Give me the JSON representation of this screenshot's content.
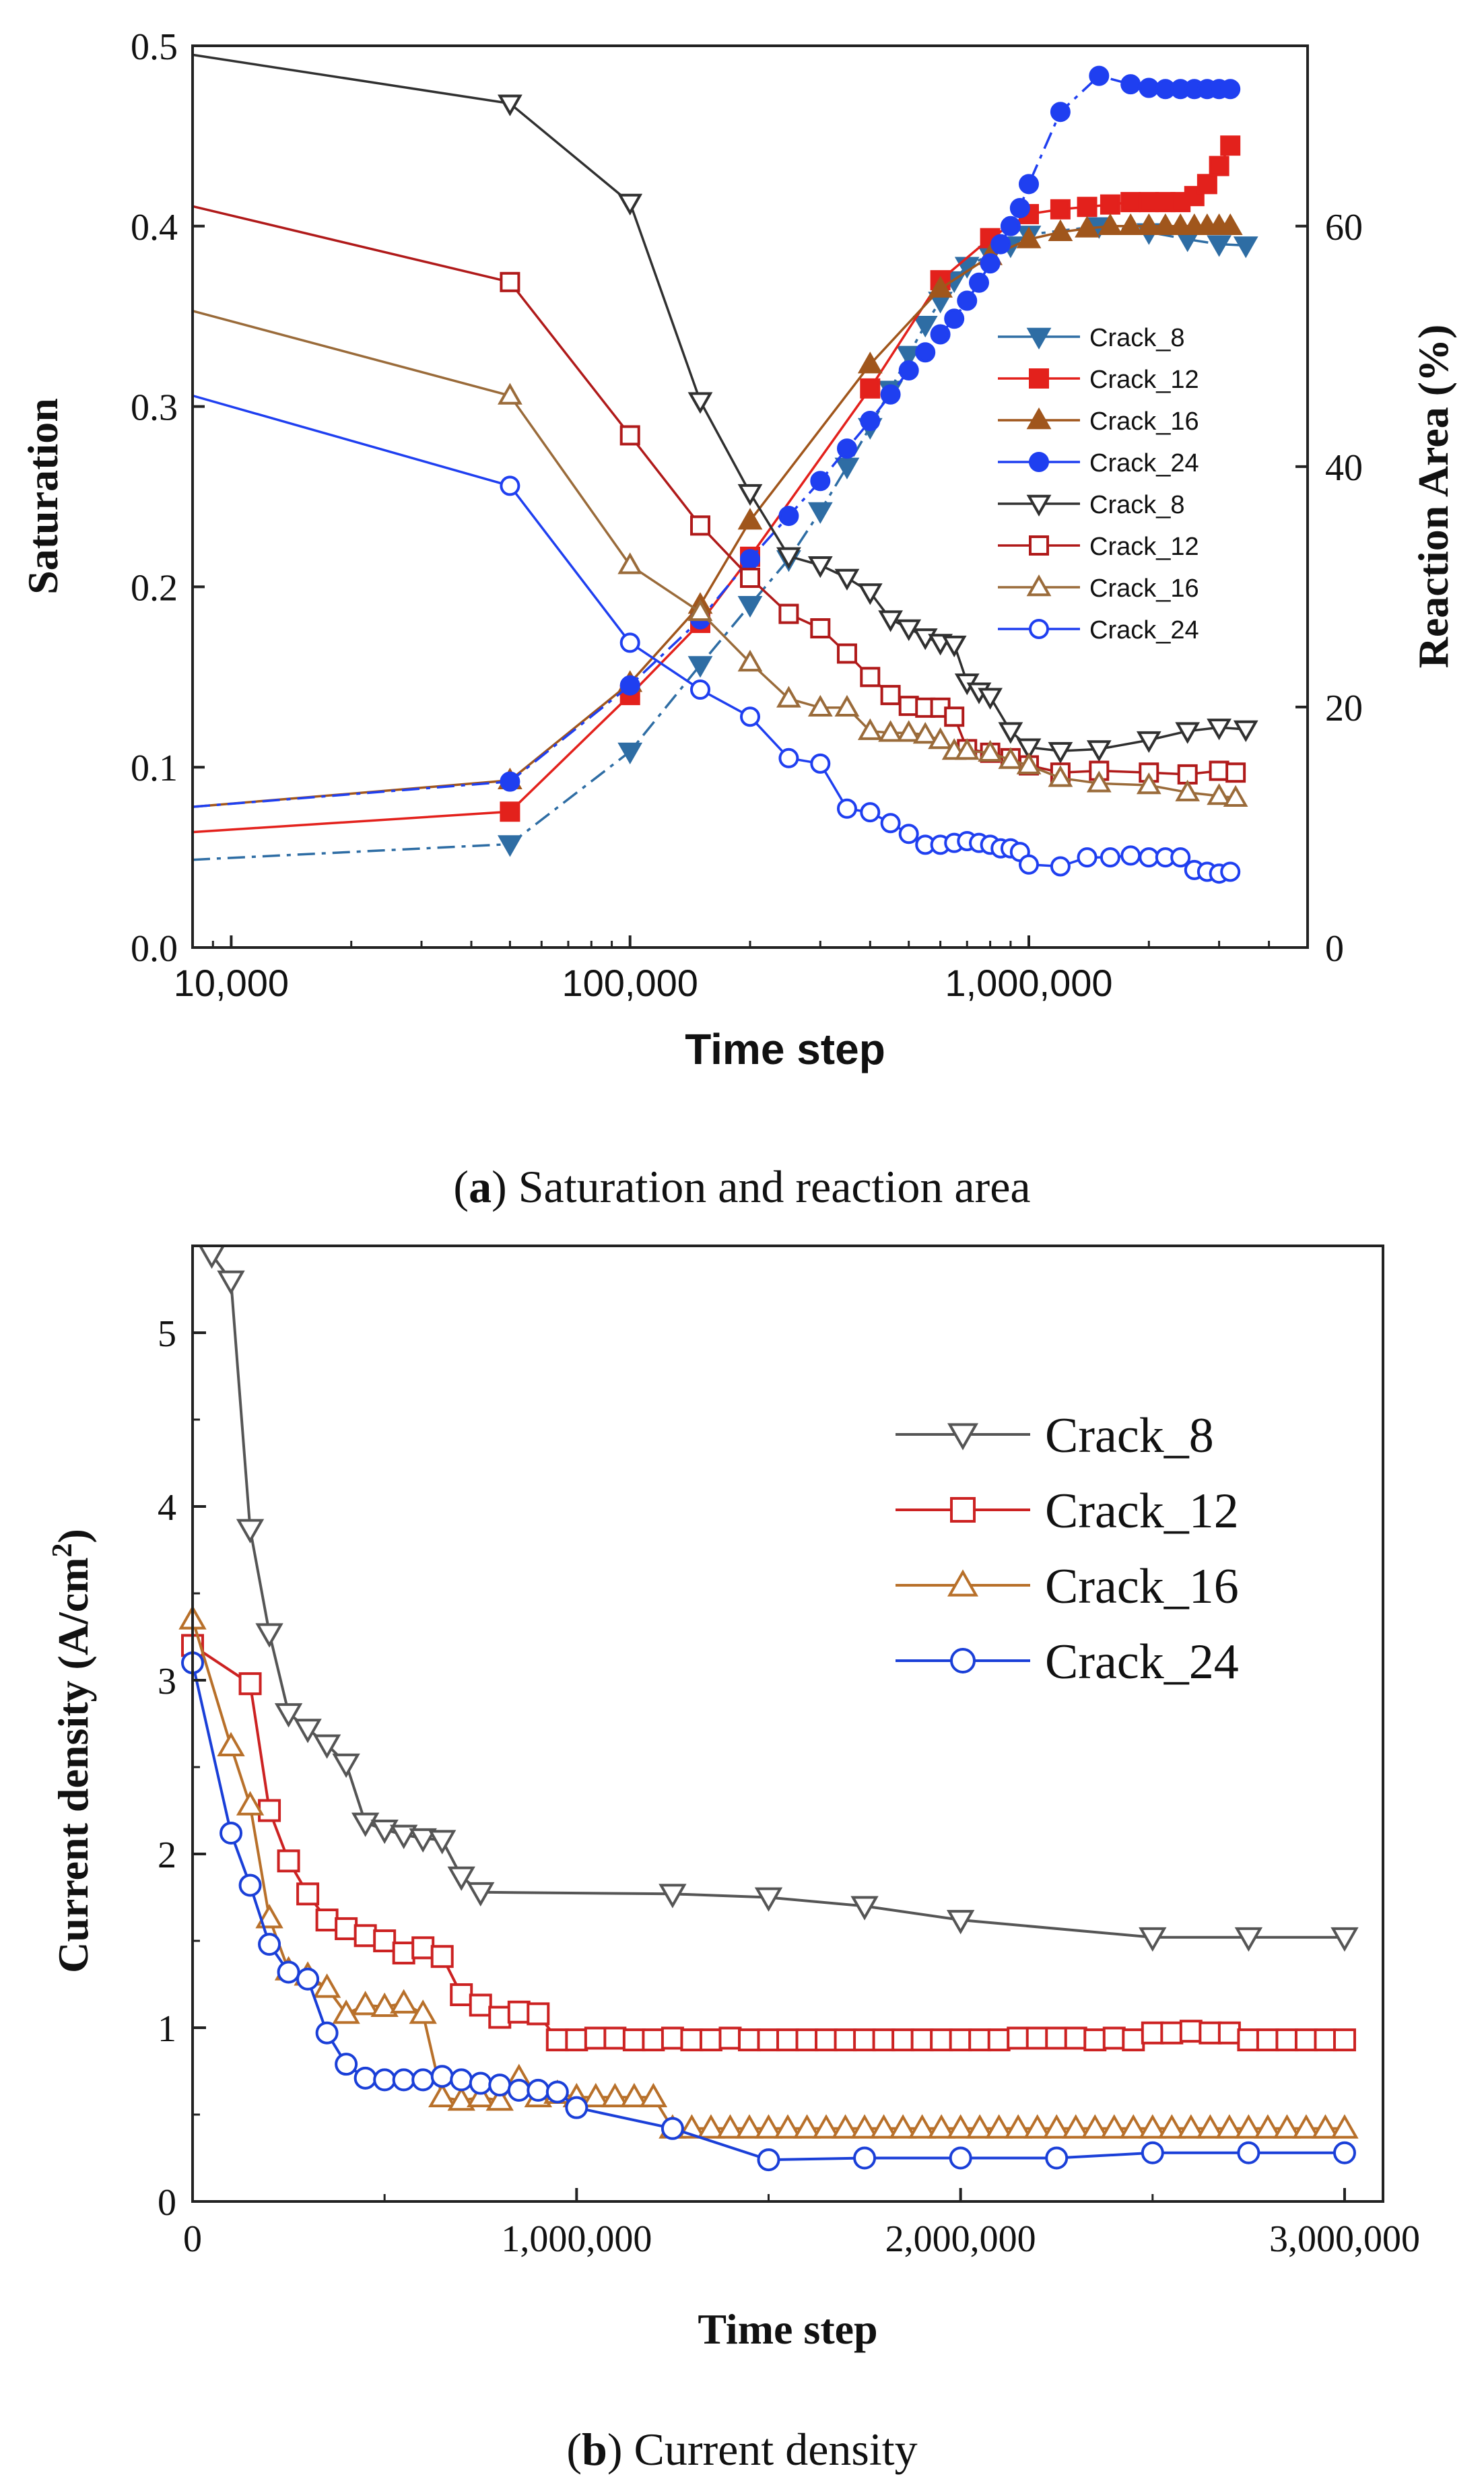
{
  "chart_data": [
    {
      "id": "a",
      "type": "line",
      "xscale": "log",
      "xlim": [
        8000,
        5000000
      ],
      "ylim": [
        0,
        0.5
      ],
      "y2lim": [
        0,
        75
      ],
      "xlabel": "Time step",
      "ylabel": "Saturation",
      "y2label": "Reaction Area (%)",
      "xticks": [
        {
          "v": 10000,
          "label": "10,000"
        },
        {
          "v": 100000,
          "label": "100,000"
        },
        {
          "v": 1000000,
          "label": "1,000,000"
        }
      ],
      "yticks": [
        {
          "v": 0,
          "label": "0.0"
        },
        {
          "v": 0.1,
          "label": "0.1"
        },
        {
          "v": 0.2,
          "label": "0.2"
        },
        {
          "v": 0.3,
          "label": "0.3"
        },
        {
          "v": 0.4,
          "label": "0.4"
        },
        {
          "v": 0.5,
          "label": "0.5"
        }
      ],
      "y2ticks": [
        {
          "v": 0,
          "label": "0"
        },
        {
          "v": 20,
          "label": "20"
        },
        {
          "v": 40,
          "label": "40"
        },
        {
          "v": 60,
          "label": "60"
        }
      ],
      "caption_bold": "a",
      "caption_text": "Saturation and reaction area",
      "series": [
        {
          "name": "Crack_8",
          "axis": "y2",
          "marker": "tri-down",
          "filled": true,
          "color": "#2e6da4",
          "dash": true,
          "x": [
            8000,
            50000,
            100000,
            150000,
            200000,
            250000,
            300000,
            350000,
            400000,
            450000,
            500000,
            550000,
            600000,
            650000,
            700000,
            800000,
            900000,
            1000000,
            1500000,
            2000000,
            2500000,
            3000000,
            3500000
          ],
          "y": [
            7.3,
            8.6,
            16.3,
            23.5,
            28.5,
            32.3,
            36.3,
            40.0,
            43.3,
            46.4,
            49.3,
            51.8,
            53.8,
            55.5,
            56.7,
            57.6,
            58.4,
            59.3,
            60.0,
            59.5,
            58.9,
            58.5,
            58.4
          ]
        },
        {
          "name": "Crack_12",
          "axis": "y2",
          "marker": "square",
          "filled": true,
          "color": "#e3211c",
          "dash": false,
          "x": [
            8000,
            50000,
            100000,
            150000,
            200000,
            400000,
            600000,
            800000,
            1000000,
            1200000,
            1400000,
            1600000,
            1800000,
            2000000,
            2200000,
            2400000,
            2600000,
            2800000,
            3000000,
            3200000
          ],
          "y": [
            9.6,
            11.3,
            21.0,
            27.0,
            32.5,
            46.5,
            55.5,
            59.0,
            61.0,
            61.4,
            61.6,
            61.8,
            62.0,
            62.0,
            62.0,
            62.0,
            62.5,
            63.5,
            65.0,
            66.7
          ]
        },
        {
          "name": "Crack_16",
          "axis": "y2",
          "marker": "tri-up",
          "filled": true,
          "color": "#a0561c",
          "dash": false,
          "x": [
            8000,
            50000,
            100000,
            150000,
            200000,
            400000,
            600000,
            800000,
            1000000,
            1200000,
            1400000,
            1600000,
            1800000,
            2000000,
            2200000,
            2400000,
            2600000,
            2800000,
            3000000,
            3200000
          ],
          "y": [
            11.7,
            13.9,
            22.0,
            28.5,
            35.5,
            48.5,
            54.8,
            57.5,
            58.9,
            59.5,
            59.8,
            60.0,
            60.0,
            60.0,
            60.0,
            60.0,
            60.0,
            60.0,
            60.0,
            60.0
          ]
        },
        {
          "name": "Crack_24",
          "axis": "y2",
          "marker": "circle",
          "filled": true,
          "color": "#1f3ff0",
          "dash": true,
          "x": [
            8000,
            50000,
            100000,
            150000,
            200000,
            250000,
            300000,
            350000,
            400000,
            450000,
            500000,
            550000,
            600000,
            650000,
            700000,
            750000,
            800000,
            850000,
            900000,
            950000,
            1000000,
            1200000,
            1500000,
            1800000,
            2000000,
            2200000,
            2400000,
            2600000,
            2800000,
            3000000,
            3200000
          ],
          "y": [
            11.7,
            13.8,
            21.8,
            27.3,
            32.3,
            35.9,
            38.8,
            41.5,
            43.8,
            46.0,
            48.0,
            49.5,
            51.0,
            52.3,
            53.8,
            55.3,
            56.9,
            58.5,
            60.0,
            61.5,
            63.5,
            69.5,
            72.5,
            71.8,
            71.5,
            71.4,
            71.4,
            71.4,
            71.4,
            71.4,
            71.4
          ]
        },
        {
          "name": "Crack_8",
          "axis": "y",
          "marker": "tri-down",
          "filled": false,
          "color": "#303030",
          "dash": false,
          "x": [
            8000,
            50000,
            100000,
            150000,
            200000,
            250000,
            300000,
            350000,
            400000,
            450000,
            500000,
            550000,
            600000,
            650000,
            700000,
            750000,
            800000,
            900000,
            1000000,
            1200000,
            1500000,
            2000000,
            2500000,
            3000000,
            3500000
          ],
          "y": [
            0.495,
            0.468,
            0.413,
            0.303,
            0.252,
            0.217,
            0.212,
            0.205,
            0.197,
            0.182,
            0.177,
            0.172,
            0.169,
            0.168,
            0.147,
            0.142,
            0.139,
            0.12,
            0.111,
            0.109,
            0.11,
            0.115,
            0.12,
            0.122,
            0.121
          ]
        },
        {
          "name": "Crack_12",
          "axis": "y",
          "marker": "square",
          "filled": false,
          "color": "#b01a1a",
          "dash": false,
          "x": [
            8000,
            50000,
            100000,
            150000,
            200000,
            250000,
            300000,
            350000,
            400000,
            450000,
            500000,
            550000,
            600000,
            650000,
            700000,
            800000,
            900000,
            1000000,
            1200000,
            1500000,
            2000000,
            2500000,
            3000000,
            3300000
          ],
          "y": [
            0.411,
            0.369,
            0.284,
            0.234,
            0.205,
            0.185,
            0.177,
            0.163,
            0.15,
            0.14,
            0.134,
            0.133,
            0.133,
            0.128,
            0.11,
            0.108,
            0.105,
            0.101,
            0.097,
            0.098,
            0.097,
            0.096,
            0.098,
            0.097
          ]
        },
        {
          "name": "Crack_16",
          "axis": "y",
          "marker": "tri-up",
          "filled": false,
          "color": "#9a6b3a",
          "dash": false,
          "x": [
            8000,
            50000,
            100000,
            150000,
            200000,
            250000,
            300000,
            350000,
            400000,
            450000,
            500000,
            550000,
            600000,
            650000,
            700000,
            800000,
            900000,
            1000000,
            1200000,
            1500000,
            2000000,
            2500000,
            3000000,
            3300000
          ],
          "y": [
            0.353,
            0.306,
            0.212,
            0.186,
            0.158,
            0.138,
            0.133,
            0.133,
            0.12,
            0.119,
            0.119,
            0.118,
            0.115,
            0.109,
            0.109,
            0.108,
            0.104,
            0.101,
            0.094,
            0.091,
            0.09,
            0.086,
            0.084,
            0.083
          ]
        },
        {
          "name": "Crack_24",
          "axis": "y",
          "marker": "circle",
          "filled": false,
          "color": "#1f3ff0",
          "dash": false,
          "x": [
            8000,
            50000,
            100000,
            150000,
            200000,
            250000,
            300000,
            350000,
            400000,
            450000,
            500000,
            550000,
            600000,
            650000,
            700000,
            750000,
            800000,
            850000,
            900000,
            950000,
            1000000,
            1200000,
            1400000,
            1600000,
            1800000,
            2000000,
            2200000,
            2400000,
            2600000,
            2800000,
            3000000,
            3200000
          ],
          "y": [
            0.306,
            0.256,
            0.169,
            0.143,
            0.128,
            0.105,
            0.102,
            0.077,
            0.075,
            0.069,
            0.063,
            0.057,
            0.057,
            0.058,
            0.059,
            0.058,
            0.057,
            0.055,
            0.055,
            0.053,
            0.046,
            0.045,
            0.05,
            0.05,
            0.051,
            0.05,
            0.05,
            0.05,
            0.043,
            0.042,
            0.041,
            0.042
          ]
        }
      ]
    },
    {
      "id": "b",
      "type": "line",
      "xscale": "linear",
      "xlim": [
        0,
        3100000
      ],
      "ylim": [
        0,
        5.5
      ],
      "xlabel": "Time step",
      "ylabel": "Current density (A/cm²)",
      "ylabel_main": "Current density (A/cm",
      "ylabel_sup": "2",
      "ylabel_end": ")",
      "xticks": [
        {
          "v": 0,
          "label": "0"
        },
        {
          "v": 1000000,
          "label": "1,000,000"
        },
        {
          "v": 2000000,
          "label": "2,000,000"
        },
        {
          "v": 3000000,
          "label": "3,000,000"
        }
      ],
      "yticks": [
        {
          "v": 0,
          "label": "0"
        },
        {
          "v": 1,
          "label": "1"
        },
        {
          "v": 2,
          "label": "2"
        },
        {
          "v": 3,
          "label": "3"
        },
        {
          "v": 4,
          "label": "4"
        },
        {
          "v": 5,
          "label": "5"
        }
      ],
      "caption_bold": "b",
      "caption_text": "Current density",
      "series": [
        {
          "name": "Crack_8",
          "marker": "tri-down",
          "filled": false,
          "color": "#555555",
          "x": [
            50000,
            100000,
            150000,
            200000,
            250000,
            300000,
            350000,
            400000,
            450000,
            500000,
            550000,
            600000,
            650000,
            700000,
            750000,
            1250000,
            1500000,
            1750000,
            2000000,
            2500000,
            2750000,
            3000000
          ],
          "y": [
            5.45,
            5.3,
            3.87,
            3.27,
            2.81,
            2.72,
            2.63,
            2.52,
            2.18,
            2.14,
            2.11,
            2.09,
            2.08,
            1.87,
            1.78,
            1.77,
            1.75,
            1.7,
            1.62,
            1.52,
            1.52,
            1.52
          ]
        },
        {
          "name": "Crack_12",
          "marker": "square",
          "filled": false,
          "color": "#cc2222",
          "x": [
            0,
            150000,
            200000,
            250000,
            300000,
            350000,
            400000,
            450000,
            500000,
            550000,
            600000,
            650000,
            700000,
            750000,
            800000,
            850000,
            900000,
            950000,
            1000000,
            1050000,
            1100000,
            1150000,
            1200000,
            1250000,
            1300000,
            1350000,
            1400000,
            1450000,
            1500000,
            1550000,
            1600000,
            1650000,
            1700000,
            1750000,
            1800000,
            1850000,
            1900000,
            1950000,
            2000000,
            2050000,
            2100000,
            2150000,
            2200000,
            2250000,
            2300000,
            2350000,
            2400000,
            2450000,
            2500000,
            2550000,
            2600000,
            2650000,
            2700000,
            2750000,
            2800000,
            2850000,
            2900000,
            2950000,
            3000000
          ],
          "y": [
            3.2,
            2.98,
            2.25,
            1.96,
            1.77,
            1.62,
            1.57,
            1.53,
            1.5,
            1.43,
            1.46,
            1.41,
            1.19,
            1.13,
            1.06,
            1.09,
            1.08,
            0.93,
            0.93,
            0.94,
            0.94,
            0.93,
            0.93,
            0.94,
            0.93,
            0.93,
            0.94,
            0.93,
            0.93,
            0.93,
            0.93,
            0.93,
            0.93,
            0.93,
            0.93,
            0.93,
            0.93,
            0.93,
            0.93,
            0.93,
            0.93,
            0.94,
            0.94,
            0.94,
            0.94,
            0.93,
            0.94,
            0.93,
            0.97,
            0.97,
            0.98,
            0.97,
            0.97,
            0.93,
            0.93,
            0.93,
            0.93,
            0.93,
            0.93
          ]
        },
        {
          "name": "Crack_16",
          "marker": "tri-up",
          "filled": false,
          "color": "#b8702a",
          "x": [
            0,
            100000,
            150000,
            200000,
            250000,
            300000,
            350000,
            400000,
            450000,
            500000,
            550000,
            600000,
            650000,
            700000,
            750000,
            800000,
            850000,
            900000,
            950000,
            1000000,
            1050000,
            1100000,
            1150000,
            1200000,
            1250000,
            1300000,
            1350000,
            1400000,
            1450000,
            1500000,
            1550000,
            1600000,
            1650000,
            1700000,
            1750000,
            1800000,
            1850000,
            1900000,
            1950000,
            2000000,
            2050000,
            2100000,
            2150000,
            2200000,
            2250000,
            2300000,
            2350000,
            2400000,
            2450000,
            2500000,
            2550000,
            2600000,
            2650000,
            2700000,
            2750000,
            2800000,
            2850000,
            2900000,
            2950000,
            3000000
          ],
          "y": [
            3.35,
            2.62,
            2.28,
            1.63,
            1.33,
            1.3,
            1.23,
            1.08,
            1.13,
            1.12,
            1.14,
            1.08,
            0.6,
            0.58,
            0.6,
            0.58,
            0.71,
            0.6,
            0.62,
            0.6,
            0.6,
            0.6,
            0.6,
            0.6,
            0.42,
            0.42,
            0.42,
            0.42,
            0.42,
            0.42,
            0.42,
            0.42,
            0.42,
            0.42,
            0.42,
            0.42,
            0.42,
            0.42,
            0.42,
            0.42,
            0.42,
            0.42,
            0.42,
            0.42,
            0.42,
            0.42,
            0.42,
            0.42,
            0.42,
            0.42,
            0.42,
            0.42,
            0.42,
            0.42,
            0.42,
            0.42,
            0.42,
            0.42,
            0.42,
            0.42
          ]
        },
        {
          "name": "Crack_24",
          "marker": "circle",
          "filled": false,
          "color": "#1a3fd8",
          "x": [
            0,
            100000,
            150000,
            200000,
            250000,
            300000,
            350000,
            400000,
            450000,
            500000,
            550000,
            600000,
            650000,
            700000,
            750000,
            800000,
            850000,
            900000,
            950000,
            1000000,
            1250000,
            1500000,
            1750000,
            2000000,
            2250000,
            2500000,
            2750000,
            3000000
          ],
          "y": [
            3.1,
            2.12,
            1.82,
            1.48,
            1.32,
            1.28,
            0.97,
            0.79,
            0.71,
            0.7,
            0.7,
            0.7,
            0.72,
            0.7,
            0.68,
            0.67,
            0.64,
            0.64,
            0.63,
            0.54,
            0.42,
            0.24,
            0.25,
            0.25,
            0.25,
            0.28,
            0.28,
            0.28
          ]
        }
      ]
    }
  ]
}
